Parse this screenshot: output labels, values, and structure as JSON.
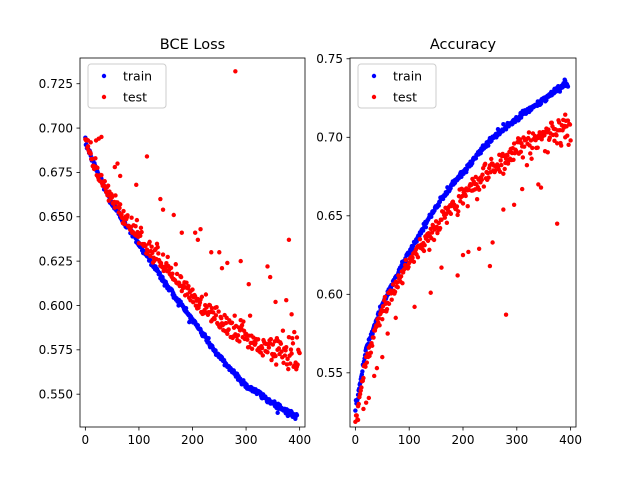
{
  "chart_data": [
    {
      "type": "scatter",
      "title": "BCE Loss",
      "xlabel": "",
      "ylabel": "",
      "xlim": [
        -10,
        410
      ],
      "ylim": [
        0.5315,
        0.7395
      ],
      "xticks": [
        0,
        100,
        200,
        300,
        400
      ],
      "yticks": [
        0.55,
        0.575,
        0.6,
        0.625,
        0.65,
        0.675,
        0.7,
        0.725
      ],
      "grid": false,
      "legend": {
        "placement": "top-left",
        "entries": [
          "train",
          "test"
        ]
      },
      "series": [
        {
          "name": "train",
          "color": "#0000ff",
          "anchors": [
            [
              0,
              0.692
            ],
            [
              20,
              0.677
            ],
            [
              50,
              0.657
            ],
            [
              100,
              0.635
            ],
            [
              150,
              0.612
            ],
            [
              200,
              0.592
            ],
            [
              250,
              0.571
            ],
            [
              300,
              0.555
            ],
            [
              350,
              0.545
            ],
            [
              395,
              0.537
            ]
          ]
        },
        {
          "name": "test",
          "color": "#ff0000",
          "anchors": [
            [
              0,
              0.692
            ],
            [
              20,
              0.675
            ],
            [
              50,
              0.658
            ],
            [
              100,
              0.637
            ],
            [
              150,
              0.62
            ],
            [
              200,
              0.603
            ],
            [
              250,
              0.59
            ],
            [
              300,
              0.58
            ],
            [
              350,
              0.572
            ],
            [
              400,
              0.566
            ]
          ],
          "outliers": [
            [
              5,
              0.693
            ],
            [
              10,
              0.692
            ],
            [
              20,
              0.693
            ],
            [
              25,
              0.694
            ],
            [
              30,
              0.695
            ],
            [
              55,
              0.678
            ],
            [
              60,
              0.68
            ],
            [
              65,
              0.673
            ],
            [
              95,
              0.668
            ],
            [
              115,
              0.684
            ],
            [
              140,
              0.66
            ],
            [
              145,
              0.654
            ],
            [
              165,
              0.651
            ],
            [
              180,
              0.641
            ],
            [
              205,
              0.641
            ],
            [
              210,
              0.637
            ],
            [
              215,
              0.643
            ],
            [
              235,
              0.63
            ],
            [
              250,
              0.63
            ],
            [
              255,
              0.621
            ],
            [
              265,
              0.624
            ],
            [
              280,
              0.732
            ],
            [
              290,
              0.625
            ],
            [
              305,
              0.612
            ],
            [
              340,
              0.622
            ],
            [
              345,
              0.616
            ],
            [
              355,
              0.602
            ],
            [
              375,
              0.603
            ],
            [
              380,
              0.637
            ],
            [
              385,
              0.595
            ],
            [
              390,
              0.585
            ],
            [
              395,
              0.582
            ]
          ]
        }
      ]
    },
    {
      "type": "scatter",
      "title": "Accuracy",
      "xlabel": "",
      "ylabel": "",
      "xlim": [
        -10,
        410
      ],
      "ylim": [
        0.5155,
        0.7505
      ],
      "xticks": [
        0,
        100,
        200,
        300,
        400
      ],
      "yticks": [
        0.55,
        0.6,
        0.65,
        0.7,
        0.75
      ],
      "grid": false,
      "legend": {
        "placement": "top-left",
        "entries": [
          "train",
          "test"
        ]
      },
      "series": [
        {
          "name": "train",
          "color": "#0000ff",
          "anchors": [
            [
              0,
              0.527
            ],
            [
              10,
              0.545
            ],
            [
              20,
              0.565
            ],
            [
              50,
              0.594
            ],
            [
              100,
              0.627
            ],
            [
              150,
              0.656
            ],
            [
              200,
              0.678
            ],
            [
              250,
              0.698
            ],
            [
              300,
              0.712
            ],
            [
              350,
              0.724
            ],
            [
              395,
              0.735
            ]
          ]
        },
        {
          "name": "test",
          "color": "#ff0000",
          "anchors": [
            [
              0,
              0.522
            ],
            [
              10,
              0.54
            ],
            [
              20,
              0.56
            ],
            [
              50,
              0.592
            ],
            [
              100,
              0.622
            ],
            [
              150,
              0.646
            ],
            [
              200,
              0.665
            ],
            [
              250,
              0.681
            ],
            [
              300,
              0.695
            ],
            [
              350,
              0.703
            ],
            [
              400,
              0.71
            ]
          ],
          "outliers": [
            [
              5,
              0.52
            ],
            [
              15,
              0.527
            ],
            [
              20,
              0.531
            ],
            [
              25,
              0.534
            ],
            [
              35,
              0.548
            ],
            [
              40,
              0.553
            ],
            [
              50,
              0.56
            ],
            [
              60,
              0.575
            ],
            [
              75,
              0.585
            ],
            [
              110,
              0.592
            ],
            [
              140,
              0.601
            ],
            [
              160,
              0.617
            ],
            [
              190,
              0.612
            ],
            [
              200,
              0.625
            ],
            [
              210,
              0.627
            ],
            [
              230,
              0.629
            ],
            [
              250,
              0.618
            ],
            [
              255,
              0.633
            ],
            [
              275,
              0.654
            ],
            [
              280,
              0.587
            ],
            [
              295,
              0.657
            ],
            [
              310,
              0.667
            ],
            [
              340,
              0.67
            ],
            [
              345,
              0.668
            ],
            [
              375,
              0.645
            ],
            [
              390,
              0.7
            ]
          ]
        }
      ]
    }
  ]
}
